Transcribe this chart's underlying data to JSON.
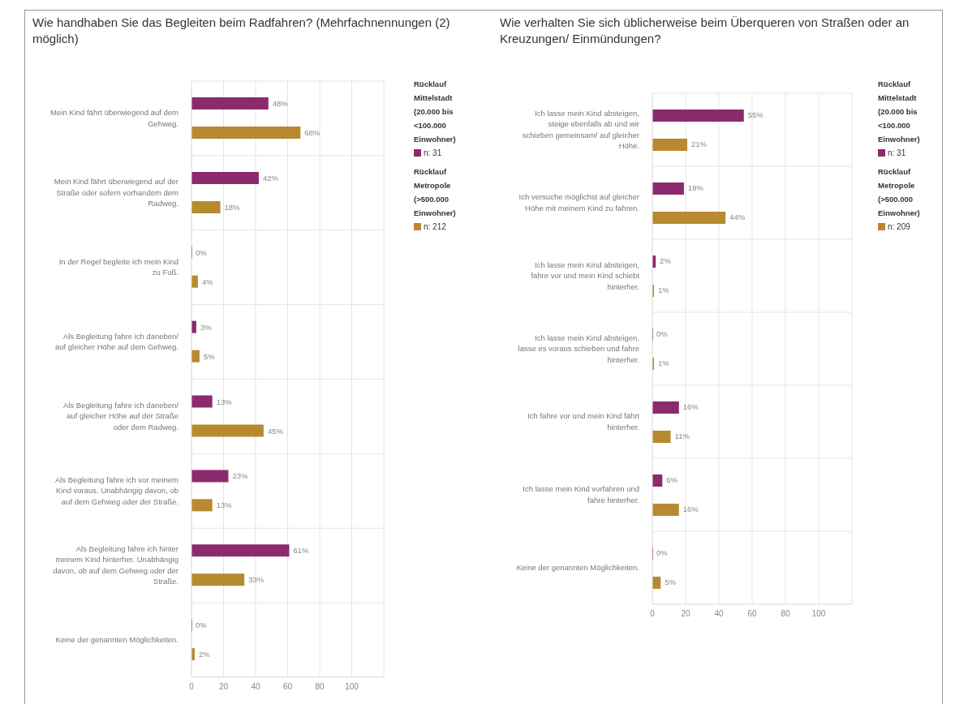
{
  "chart_data": [
    {
      "type": "bar",
      "orientation": "horizontal",
      "title": "Wie handhaben Sie das Begleiten beim Radfahren? (Mehrfachnennungen (2) möglich)",
      "categories": [
        "Mein Kind fährt überwiegend auf dem Gehweg.",
        "Mein Kind fährt überwiegend auf der Straße oder sofern vorhandem dem Radweg.",
        "In der Regel begleite ich mein Kind zu Fuß.",
        "Als Begleitung fahre ich daneben/ auf gleicher Höhe auf dem Gehweg.",
        "Als Begleitung fahre ich daneben/ auf gleicher Höhe auf der Straße oder dem Radweg.",
        "Als Begleitung fahre ich vor meinem Kind voraus. Unabhängig davon, ob auf dem Gehweg oder der Straße.",
        "Als Begleitung fahre ich hinter meinem Kind hinterher. Unabhängig davon, ob auf dem Gehweg oder der Straße.",
        "Keine der genannten Möglichkeiten."
      ],
      "series": [
        {
          "name": "Rücklauf Mittelstadt (20.000 bis <100.000 Einwohner)",
          "color": "#8b2b6e",
          "values": [
            48,
            42,
            0,
            3,
            13,
            23,
            61,
            0
          ],
          "value_labels": [
            "48%",
            "42%",
            "0%",
            "3%",
            "13%",
            "23%",
            "61%",
            "0%"
          ]
        },
        {
          "name": "Rücklauf Metropole (>500.000 Einwohner)",
          "color": "#b78a2f",
          "values": [
            68,
            18,
            4,
            5,
            45,
            13,
            33,
            2
          ],
          "value_labels": [
            "68%",
            "18%",
            "4%",
            "5%",
            "45%",
            "13%",
            "33%",
            "2%"
          ]
        }
      ],
      "xlim": [
        0,
        120
      ],
      "xticks": [
        0,
        20,
        40,
        60,
        80,
        100
      ],
      "grid": true,
      "legend": "right",
      "annotations": [
        "n: 31",
        "n: 212"
      ]
    },
    {
      "type": "bar",
      "orientation": "horizontal",
      "title": "Wie verhalten Sie sich üblicherweise beim Überqueren von Straßen oder an Kreuzungen/ Einmündungen?",
      "categories": [
        "Ich lasse mein Kind absteigen, steige ebenfalls ab und wir schieben gemeinsam/ auf gleicher Höhe.",
        "Ich versuche möglichst auf gleicher Höhe mit meinem Kind zu fahren.",
        "Ich lasse mein Kind absteigen, fahre vor und mein Kind schiebt hinterher.",
        "Ich lasse mein Kind absteigen, lasse es voraus schieben und fahre hinterher.",
        "Ich fahre vor und mein Kind fährt hinterher.",
        "Ich lasse mein Kind vorfahren und fahre hinterher.",
        "Keine der genannten Möglichkeiten."
      ],
      "series": [
        {
          "name": "Rücklauf Mittelstadt (20.000 bis <100.000 Einwohner)",
          "color": "#8b2b6e",
          "values": [
            55,
            19,
            2,
            0,
            16,
            6,
            0
          ],
          "value_labels": [
            "55%",
            "19%",
            "2%",
            "0%",
            "16%",
            "6%",
            "0%"
          ]
        },
        {
          "name": "Rücklauf Metropole (>500.000 Einwohner)",
          "color": "#b78a2f",
          "values": [
            21,
            44,
            1,
            1,
            11,
            16,
            5
          ],
          "value_labels": [
            "21%",
            "44%",
            "1%",
            "1%",
            "11%",
            "16%",
            "5%"
          ]
        }
      ],
      "xlim": [
        0,
        120
      ],
      "xticks": [
        0,
        20,
        40,
        60,
        80,
        100
      ],
      "grid": true,
      "legend": "right",
      "annotations": [
        "n: 31",
        "n: 209"
      ]
    }
  ]
}
